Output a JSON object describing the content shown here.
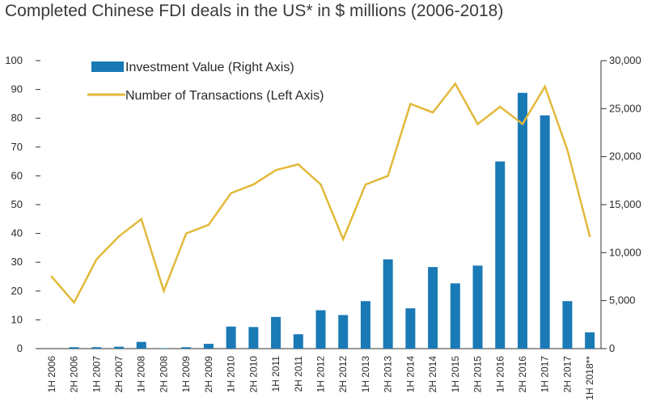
{
  "chart_data": {
    "type": "bar+line",
    "title": "Completed Chinese FDI deals in the US* in $ millions (2006-2018)",
    "categories": [
      "1H 2006",
      "2H 2006",
      "1H 2007",
      "2H 2007",
      "1H 2008",
      "2H 2008",
      "1H 2009",
      "2H 2009",
      "1H 2010",
      "2H 2010",
      "1H 2011",
      "2H 2011",
      "1H 2012",
      "2H 2012",
      "1H 2013",
      "2H 2013",
      "1H 2014",
      "2H 2014",
      "1H 2015",
      "2H 2015",
      "1H 2016",
      "2H 2016",
      "1H 2017",
      "2H 2017",
      "1H 2018**"
    ],
    "series": [
      {
        "name": "Investment Value (Right Axis)",
        "type": "bar",
        "axis": "right",
        "color": "#1a7ab5",
        "values": [
          0,
          150,
          150,
          200,
          700,
          50,
          150,
          500,
          2300,
          2250,
          3300,
          1500,
          4000,
          3500,
          4950,
          9300,
          4200,
          8500,
          6800,
          8650,
          19500,
          26650,
          24300,
          4950,
          1700
        ]
      },
      {
        "name": "Number of Transactions (Left Axis)",
        "type": "line",
        "axis": "left",
        "color": "#e2b93b",
        "values": [
          25,
          16,
          31,
          39,
          45,
          20,
          40,
          43,
          54,
          57,
          62,
          64,
          57,
          38,
          57,
          60,
          85,
          82,
          92,
          78,
          84,
          78,
          91,
          69,
          39
        ]
      }
    ],
    "y_left": {
      "min": 0,
      "max": 100,
      "ticks": [
        "0",
        "10",
        "20",
        "30",
        "40",
        "50",
        "60",
        "70",
        "80",
        "90",
        "100"
      ]
    },
    "y_right": {
      "min": 0,
      "max": 30000,
      "ticks": [
        "0",
        "5,000",
        "10,000",
        "15,000",
        "20,000",
        "25,000",
        "30,000"
      ]
    },
    "legend_position": "top-left"
  }
}
